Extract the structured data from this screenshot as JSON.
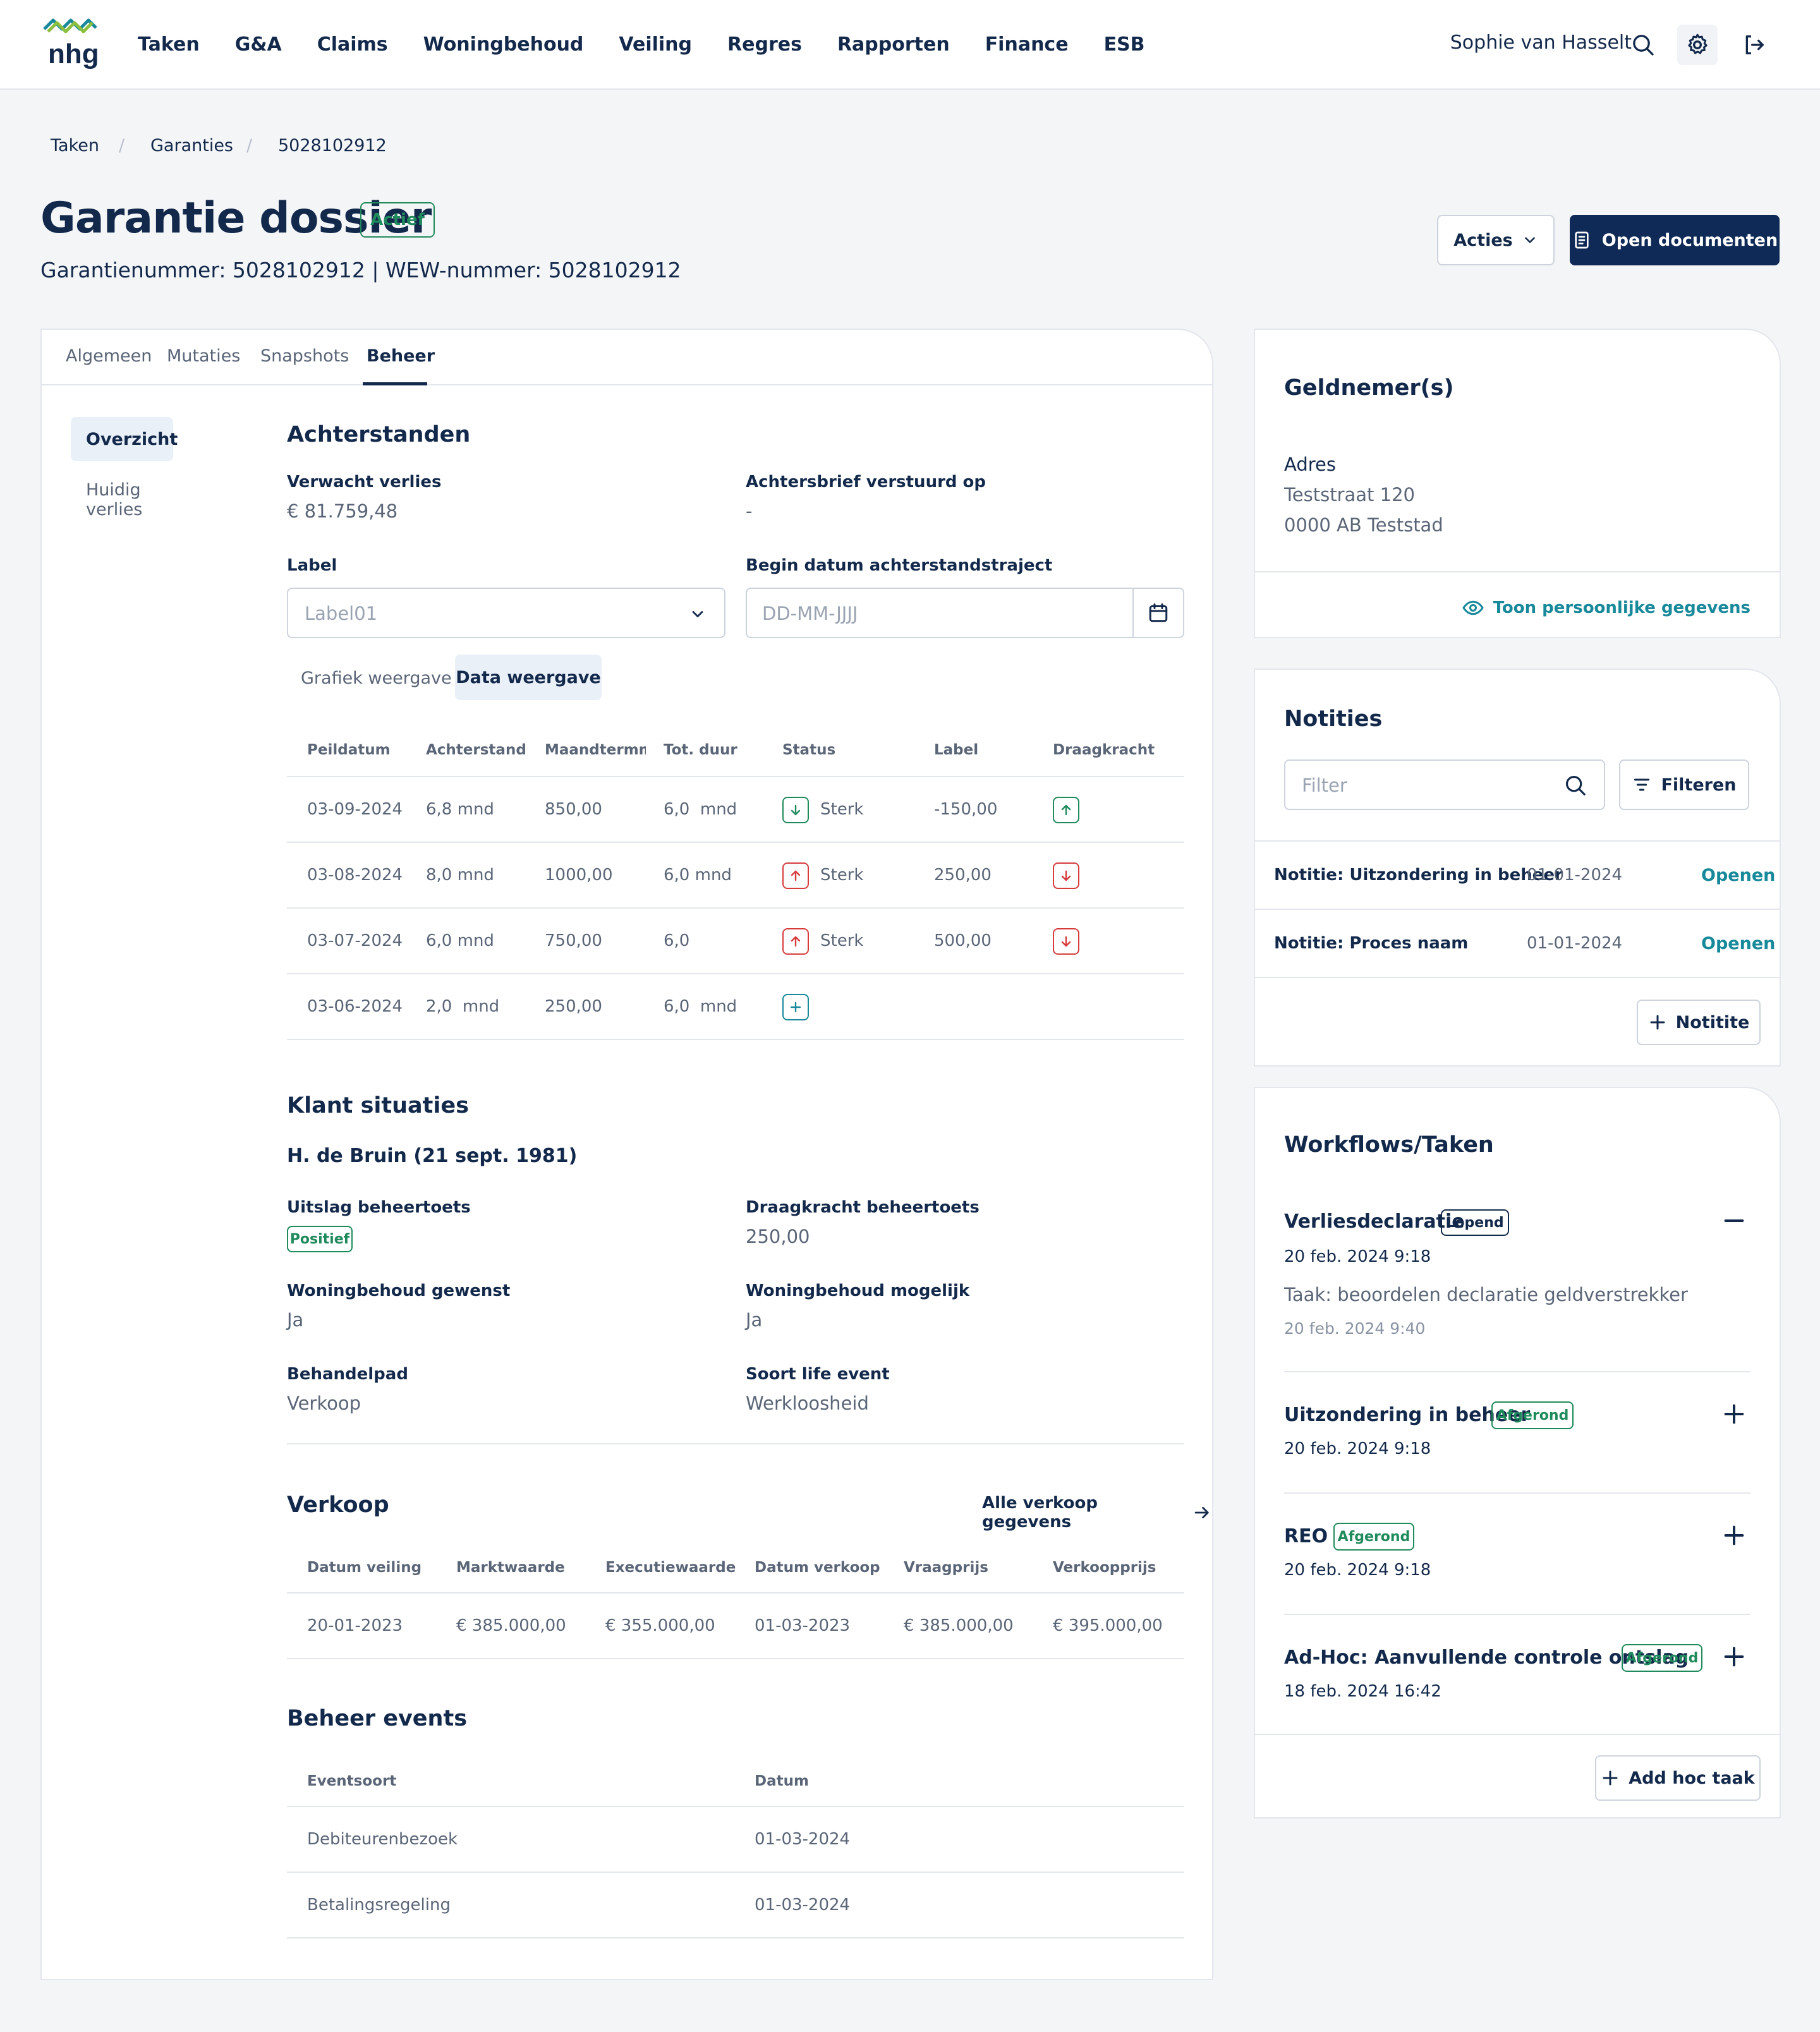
{
  "header": {
    "nav": [
      "Taken",
      "G&A",
      "Claims",
      "Woningbehoud",
      "Veiling",
      "Regres",
      "Rapporten",
      "Finance",
      "ESB"
    ],
    "user": "Sophie van Hasselt",
    "logo_text": "nhg"
  },
  "breadcrumb": [
    "Taken",
    "Garanties",
    "5028102912"
  ],
  "page": {
    "title": "Garantie dossier",
    "status": "Actief",
    "subtitle": "Garantienummer: 5028102912 | WEW-nummer: 5028102912",
    "acties_label": "Acties",
    "open_docs_label": "Open documenten"
  },
  "tabs": [
    "Algemeen",
    "Mutaties",
    "Snapshots",
    "Beheer"
  ],
  "side_nav": [
    "Overzicht",
    "Huidig verlies"
  ],
  "achterstanden": {
    "heading": "Achterstanden",
    "verwacht_label": "Verwacht verlies",
    "verwacht_value": "€ 81.759,48",
    "brief_label": "Achtersbrief verstuurd op",
    "brief_value": "-",
    "label_label": "Label",
    "label_value": "Label01",
    "begin_label": "Begin datum achterstandstraject",
    "begin_placeholder": "DD-MM-JJJJ",
    "view_tabs": [
      "Grafiek weergave",
      "Data weergave"
    ],
    "columns": [
      "Peildatum",
      "Achterstand",
      "Maandtermmijn",
      "Tot. duur",
      "Status",
      "Label",
      "Draagkracht"
    ],
    "rows": [
      {
        "peildatum": "03-09-2024",
        "achterstand": "6,8 mnd",
        "maandtermijn": "850,00",
        "duur": "6,0  mnd",
        "status_icon": "arrow-down",
        "status": "Sterk",
        "label": "-150,00",
        "draagkracht_icon": "arrow-up"
      },
      {
        "peildatum": "03-08-2024",
        "achterstand": "8,0 mnd",
        "maandtermijn": "1000,00",
        "duur": "6,0 mnd",
        "status_icon": "arrow-up",
        "status": "Sterk",
        "label": "250,00",
        "draagkracht_icon": "arrow-down"
      },
      {
        "peildatum": "03-07-2024",
        "achterstand": "6,0 mnd",
        "maandtermijn": "750,00",
        "duur": "6,0",
        "status_icon": "arrow-up",
        "status": "Sterk",
        "label": "500,00",
        "draagkracht_icon": "arrow-down"
      },
      {
        "peildatum": "03-06-2024",
        "achterstand": "2,0  mnd",
        "maandtermijn": "250,00",
        "duur": "6,0  mnd",
        "status_icon": "plus",
        "status": "",
        "label": "",
        "draagkracht_icon": ""
      }
    ]
  },
  "klant": {
    "heading": "Klant situaties",
    "name": "H. de Bruin (21 sept. 1981)",
    "uitslag_label": "Uitslag beheertoets",
    "uitslag_value": "Positief",
    "draag_label": "Draagkracht beheertoets",
    "draag_value": "250,00",
    "gewenst_label": "Woningbehoud gewenst",
    "gewenst_value": "Ja",
    "mogelijk_label": "Woningbehoud mogelijk",
    "mogelijk_value": "Ja",
    "pad_label": "Behandelpad",
    "pad_value": "Verkoop",
    "event_label": "Soort life event",
    "event_value": "Werkloosheid"
  },
  "verkoop": {
    "heading": "Verkoop",
    "link": "Alle verkoop gegevens",
    "columns": [
      "Datum veiling",
      "Marktwaarde",
      "Executiewaarde",
      "Datum verkoop",
      "Vraagprijs",
      "Verkoopprijs"
    ],
    "row": [
      "20-01-2023",
      "€ 385.000,00",
      "€ 355.000,00",
      "01-03-2023",
      "€ 385.000,00",
      "€ 395.000,00"
    ]
  },
  "beheer_events": {
    "heading": "Beheer events",
    "columns": [
      "Eventsoort",
      "Datum"
    ],
    "rows": [
      [
        "Debiteurenbezoek",
        "01-03-2024"
      ],
      [
        "Betalingsregeling",
        "01-03-2024"
      ]
    ]
  },
  "geldnemer": {
    "heading": "Geldnemer(s)",
    "adres_label": "Adres",
    "street": "Teststraat 120",
    "city": "0000 AB Teststad",
    "toon": "Toon persoonlijke gegevens"
  },
  "notities": {
    "heading": "Notities",
    "filter_placeholder": "Filter",
    "filter_button": "Filteren",
    "items": [
      {
        "title": "Notitie: Uitzondering in beheer",
        "date": "01-01-2024",
        "action": "Openen"
      },
      {
        "title": "Notitie: Proces naam",
        "date": "01-01-2024",
        "action": "Openen"
      }
    ],
    "add_label": "Notitite"
  },
  "workflows": {
    "heading": "Workflows/Taken",
    "items": [
      {
        "title": "Verliesdeclaratie",
        "badge": "Lopend",
        "date": "20 feb. 2024 9:18",
        "task": "Taak: beoordelen declaratie geldverstrekker",
        "task_date": "20 feb. 2024 9:40"
      },
      {
        "title": "Uitzondering in beheer",
        "badge": "Afgerond",
        "date": "20 feb. 2024 9:18"
      },
      {
        "title": "REO",
        "badge": "Afgerond",
        "date": "20 feb. 2024 9:18"
      },
      {
        "title": "Ad-Hoc: Aanvullende controle ontslag",
        "badge": "Afgerond",
        "date": "18 feb. 2024 16:42"
      }
    ],
    "add_label": "Add hoc taak"
  },
  "colors": {
    "navy": "#13294b",
    "primary": "#0f2a56",
    "green": "#1f8a5b",
    "red": "#d63c3c",
    "teal": "#17899a"
  }
}
